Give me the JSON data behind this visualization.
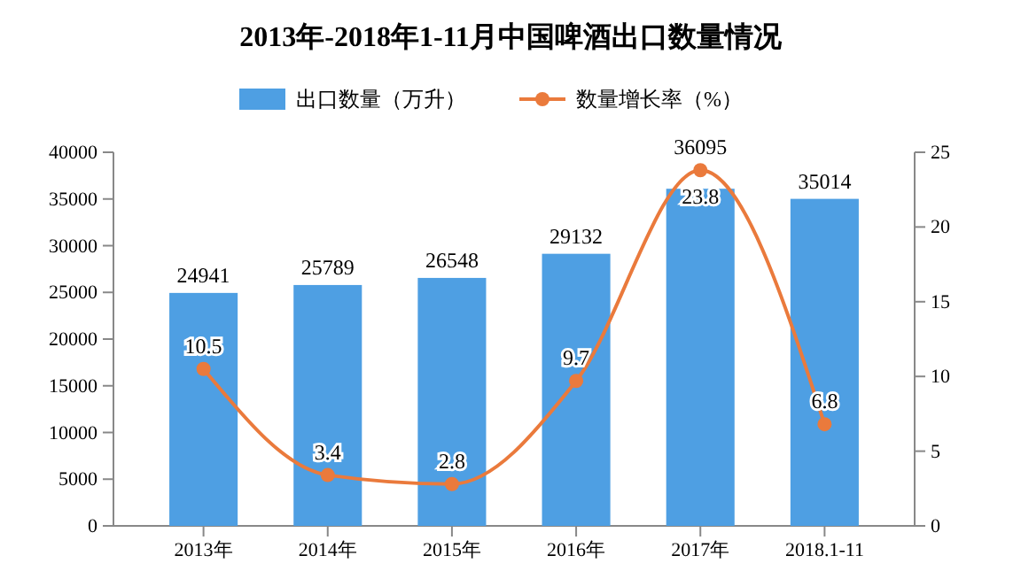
{
  "chart_data": {
    "type": "bar",
    "title": "2013年-2018年1-11月中国啤酒出口数量情况",
    "categories": [
      "2013年",
      "2014年",
      "2015年",
      "2016年",
      "2017年",
      "2018.1-11"
    ],
    "series": [
      {
        "name": "出口数量（万升）",
        "color": "#4e9fe3",
        "values": [
          24941,
          25789,
          26548,
          29132,
          36095,
          35014
        ]
      },
      {
        "name": "数量增长率（%）",
        "type": "line",
        "axis": "y2",
        "color": "#ea7a3c",
        "marker": "circle",
        "values": [
          10.5,
          3.4,
          2.8,
          9.7,
          23.8,
          6.8
        ]
      }
    ],
    "ylim": [
      0,
      40000
    ],
    "yticks": [
      0,
      5000,
      10000,
      15000,
      20000,
      25000,
      30000,
      35000,
      40000
    ],
    "y2lim": [
      0,
      25
    ],
    "y2ticks": [
      0,
      5,
      10,
      15,
      20,
      25
    ],
    "data_labels": true,
    "legend": "top",
    "grid": false
  }
}
